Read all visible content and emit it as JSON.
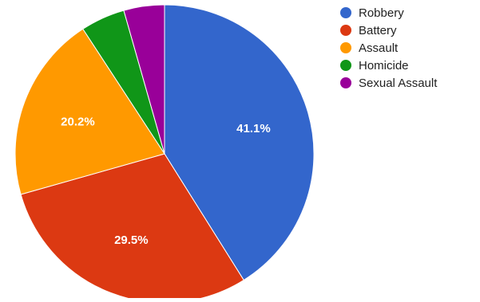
{
  "chart_data": {
    "type": "pie",
    "title": "",
    "start_angle_deg": 0,
    "direction": "clockwise",
    "legend_position": "right",
    "slices": [
      {
        "label": "Robbery",
        "value": 41.1,
        "display_label": "41.1%",
        "color": "#3366cc",
        "show_label": true
      },
      {
        "label": "Battery",
        "value": 29.5,
        "display_label": "29.5%",
        "color": "#dc3912",
        "show_label": true
      },
      {
        "label": "Assault",
        "value": 20.2,
        "display_label": "20.2%",
        "color": "#ff9900",
        "show_label": true
      },
      {
        "label": "Homicide",
        "value": 4.8,
        "display_label": "",
        "color": "#109618",
        "show_label": false
      },
      {
        "label": "Sexual Assault",
        "value": 4.4,
        "display_label": "",
        "color": "#990099",
        "show_label": false
      }
    ]
  }
}
